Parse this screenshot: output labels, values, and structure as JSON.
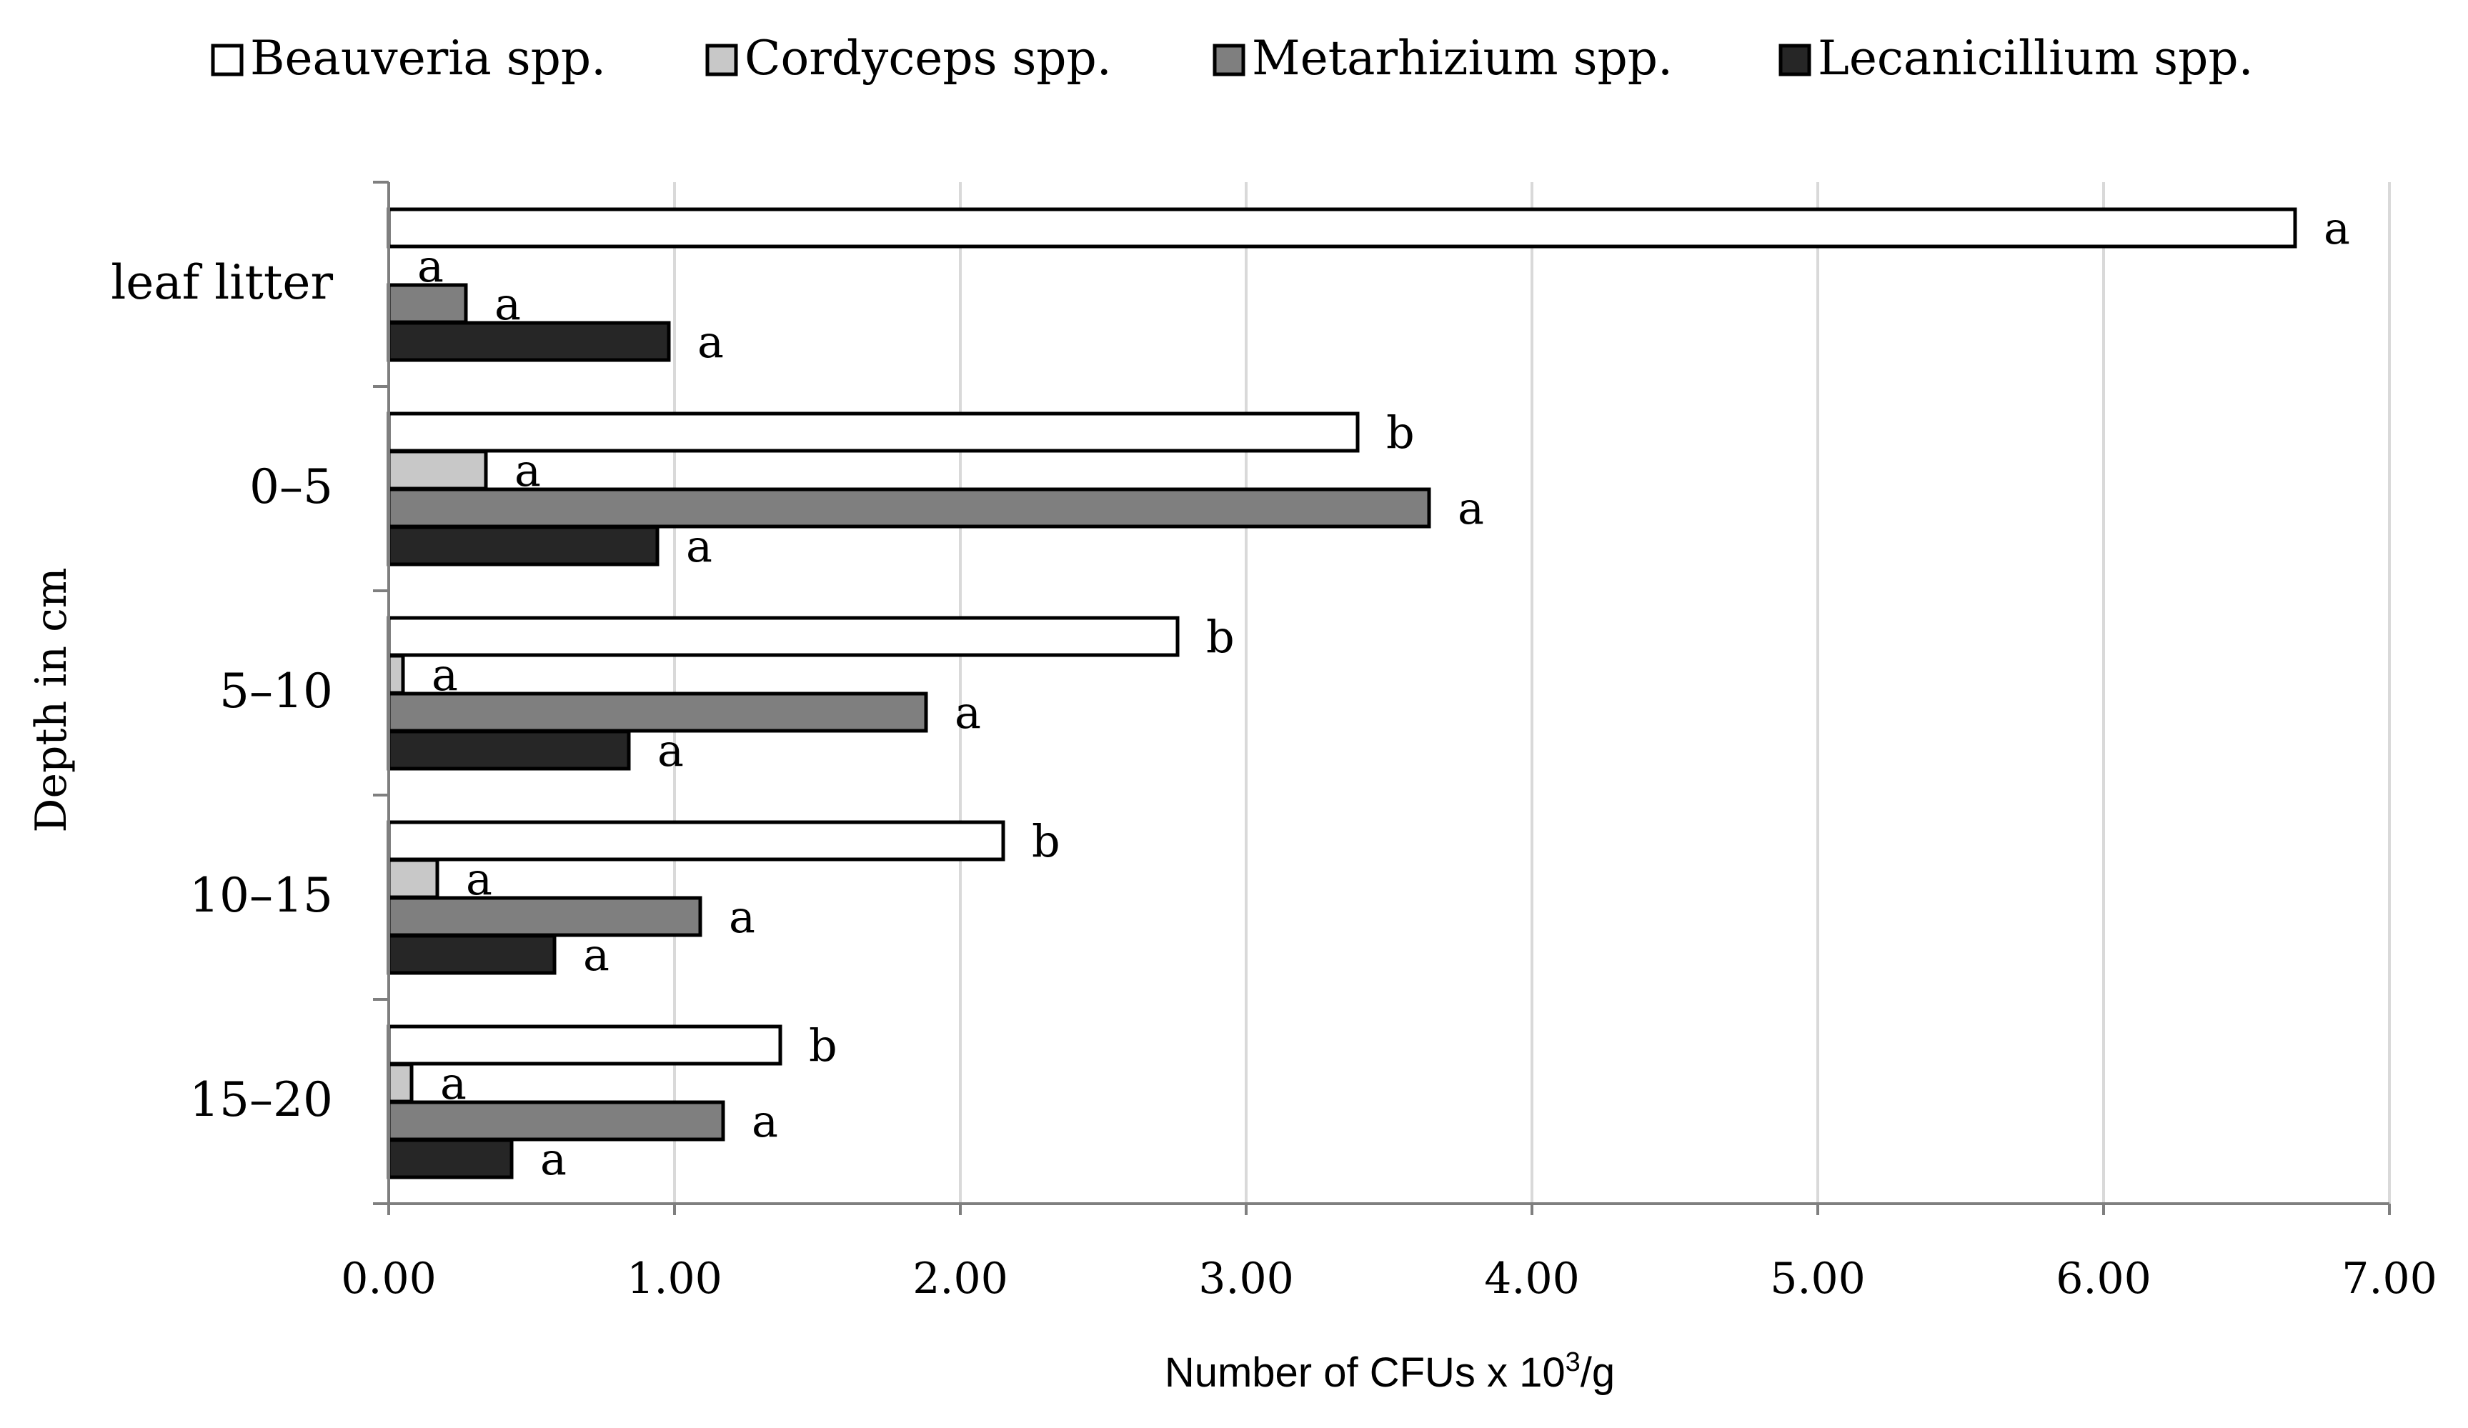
{
  "chart_data": {
    "type": "bar",
    "orientation": "horizontal",
    "title": "",
    "xlabel": "Number of CFUs x 10",
    "xlabel_superscript": "3",
    "xlabel_suffix": "/g",
    "ylabel": "Depth in cm",
    "xlim": [
      0,
      7
    ],
    "xticks": [
      0,
      1,
      2,
      3,
      4,
      5,
      6,
      7
    ],
    "xtick_labels": [
      "0.00",
      "1.00",
      "2.00",
      "3.00",
      "4.00",
      "5.00",
      "6.00",
      "7.00"
    ],
    "grid": true,
    "legend_position": "top",
    "categories": [
      "leaf litter",
      "0–5",
      "5–10",
      "10–15",
      "15–20"
    ],
    "series": [
      {
        "name": "Beauveria spp.",
        "color": "#ffffff",
        "values": [
          6.67,
          3.39,
          2.76,
          2.15,
          1.37
        ],
        "letters": [
          "a",
          "b",
          "b",
          "b",
          "b"
        ]
      },
      {
        "name": "Cordyceps spp.",
        "color": "#c8c8c8",
        "values": [
          0.0,
          0.34,
          0.05,
          0.17,
          0.08
        ],
        "letters": [
          "a",
          "a",
          "a",
          "a",
          "a"
        ]
      },
      {
        "name": "Metarhizium spp.",
        "color": "#7f7f7f",
        "values": [
          0.27,
          3.64,
          1.88,
          1.09,
          1.17
        ],
        "letters": [
          "a",
          "a",
          "a",
          "a",
          "a"
        ]
      },
      {
        "name": "Lecanicillium spp.",
        "color": "#262626",
        "values": [
          0.98,
          0.94,
          0.84,
          0.58,
          0.43
        ],
        "letters": [
          "a",
          "a",
          "a",
          "a",
          "a"
        ]
      }
    ]
  }
}
